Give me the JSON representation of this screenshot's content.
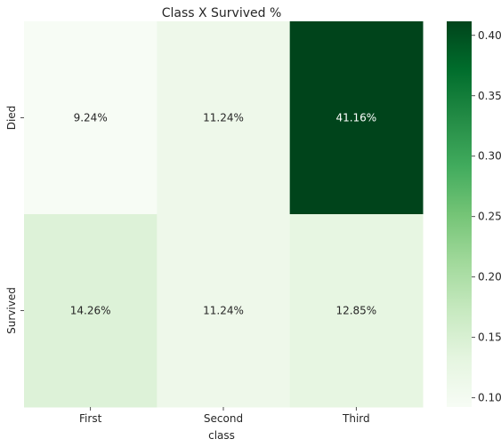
{
  "chart_data": {
    "type": "heatmap",
    "title": "Class X Survived %",
    "xlabel": "class",
    "ylabel": "",
    "x_categories": [
      "First",
      "Second",
      "Third"
    ],
    "y_categories": [
      "Died",
      "Survived"
    ],
    "values": [
      [
        0.0924,
        0.1124,
        0.4116
      ],
      [
        0.1426,
        0.1124,
        0.1285
      ]
    ],
    "annotations": [
      [
        "9.24%",
        "11.24%",
        "41.16%"
      ],
      [
        "14.26%",
        "11.24%",
        "12.85%"
      ]
    ],
    "colorbar": {
      "colormap": "Greens",
      "vmin": 0.0924,
      "vmax": 0.4116,
      "ticks": [
        0.1,
        0.15,
        0.2,
        0.25,
        0.3,
        0.35,
        0.4
      ],
      "tick_labels": [
        "0.10",
        "0.15",
        "0.20",
        "0.25",
        "0.30",
        "0.35",
        "0.40"
      ]
    }
  }
}
